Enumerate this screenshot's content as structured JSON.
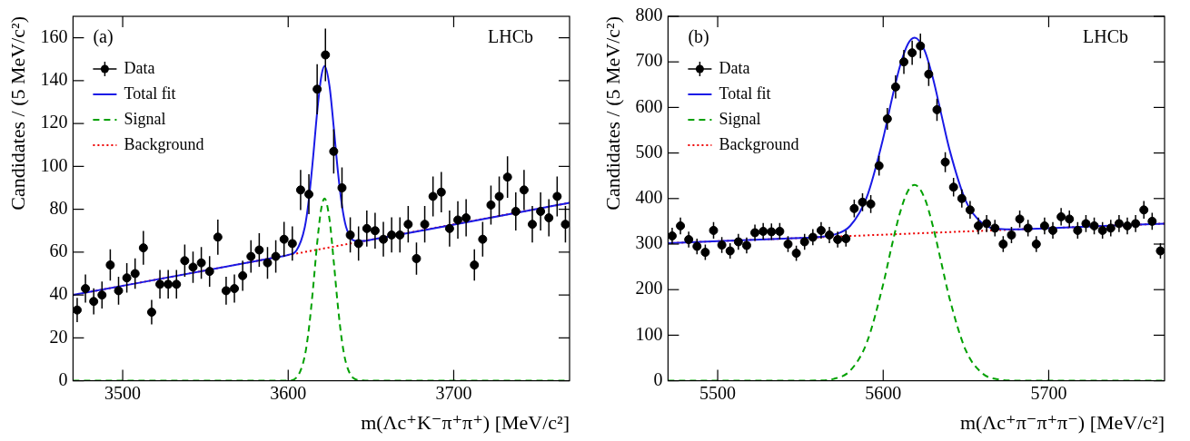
{
  "chart_data": [
    {
      "type": "scatter",
      "x_label": "m(Λc⁺K⁻π⁺π⁺) [MeV/c²]",
      "y_label": "Candidates / (5 MeV/c²)",
      "annotations": [
        {
          "text": "(a)",
          "position": "upper left"
        },
        {
          "text": "LHCb",
          "position": "upper right"
        }
      ],
      "xlim": [
        3470,
        3770
      ],
      "xticks": [
        3500,
        3600,
        3700
      ],
      "ylim": [
        0,
        170
      ],
      "yticks": [
        0,
        20,
        40,
        60,
        80,
        100,
        120,
        140,
        160
      ],
      "grid": false,
      "legend": "upper left",
      "series": [
        {
          "name": "Data",
          "type": "scatter",
          "color": "#000000",
          "marker": "circle",
          "x": [
            3472.5,
            3477.5,
            3482.5,
            3487.5,
            3492.5,
            3497.5,
            3502.5,
            3507.5,
            3512.5,
            3517.5,
            3522.5,
            3527.5,
            3532.5,
            3537.5,
            3542.5,
            3547.5,
            3552.5,
            3557.5,
            3562.5,
            3567.5,
            3572.5,
            3577.5,
            3582.5,
            3587.5,
            3592.5,
            3597.5,
            3602.5,
            3607.5,
            3612.5,
            3617.5,
            3622.5,
            3627.5,
            3632.5,
            3637.5,
            3642.5,
            3647.5,
            3652.5,
            3657.5,
            3662.5,
            3667.5,
            3672.5,
            3677.5,
            3682.5,
            3687.5,
            3692.5,
            3697.5,
            3702.5,
            3707.5,
            3712.5,
            3717.5,
            3722.5,
            3727.5,
            3732.5,
            3737.5,
            3742.5,
            3747.5,
            3752.5,
            3757.5,
            3762.5,
            3767.5
          ],
          "values": [
            33,
            43,
            37,
            40,
            54,
            42,
            48,
            50,
            62,
            32,
            45,
            45,
            45,
            56,
            53,
            55,
            51,
            67,
            42,
            43,
            49,
            58,
            61,
            55,
            58,
            66,
            64,
            89,
            87,
            136,
            152,
            107,
            90,
            68,
            64,
            71,
            70,
            66,
            68,
            68,
            73,
            57,
            73,
            86,
            88,
            71,
            75,
            76,
            54,
            66,
            82,
            86,
            95,
            79,
            89,
            73,
            79,
            76,
            86,
            73
          ],
          "errors": [
            5.7,
            6.6,
            6.1,
            6.3,
            7.3,
            6.5,
            6.9,
            7.1,
            7.9,
            5.7,
            6.7,
            6.7,
            6.7,
            7.5,
            7.3,
            7.4,
            7.1,
            8.2,
            6.5,
            6.6,
            7,
            7.6,
            7.8,
            7.4,
            7.6,
            8.1,
            8,
            9.4,
            9.3,
            11.7,
            12.3,
            10.3,
            9.5,
            8.2,
            8,
            8.4,
            8.4,
            8.1,
            8.2,
            8.2,
            8.5,
            7.5,
            8.5,
            9.3,
            9.4,
            8.4,
            8.7,
            8.7,
            7.3,
            8.1,
            9.1,
            9.3,
            9.7,
            8.9,
            9.4,
            8.5,
            8.9,
            8.7,
            9.3,
            8.5
          ]
        },
        {
          "name": "Total fit",
          "type": "line",
          "color": "#1a1ae6",
          "line_style": "solid",
          "x": [
            3470,
            3590,
            3600,
            3605,
            3610,
            3612.5,
            3615,
            3617.5,
            3620,
            3622,
            3625,
            3627.5,
            3630,
            3632.5,
            3635,
            3640,
            3645,
            3650,
            3770
          ],
          "values": [
            40,
            57.2,
            58.7,
            60.8,
            71.6,
            84.7,
            103.8,
            125.3,
            141.9,
            146.8,
            137.2,
            118.4,
            97.9,
            81.7,
            71.7,
            65.3,
            65.2,
            65.8,
            83
          ]
        },
        {
          "name": "Signal",
          "type": "line",
          "color": "#00a000",
          "line_style": "dashed",
          "x": [
            3470,
            3590,
            3600,
            3605,
            3610,
            3612.5,
            3615,
            3617.5,
            3620,
            3622,
            3625,
            3627.5,
            3630,
            3632.5,
            3635,
            3640,
            3645,
            3650,
            3770
          ],
          "values": [
            0,
            0,
            0.1,
            1.5,
            11.5,
            24.3,
            43,
            64.2,
            80.4,
            85,
            75,
            55.8,
            35,
            18.4,
            8.1,
            0.9,
            0.1,
            0,
            0
          ]
        },
        {
          "name": "Background",
          "type": "line",
          "color": "#ee0000",
          "line_style": "dotted",
          "x": [
            3470,
            3770
          ],
          "values": [
            40,
            83
          ]
        }
      ]
    },
    {
      "type": "scatter",
      "x_label": "m(Λc⁺π⁻π⁺π⁻) [MeV/c²]",
      "y_label": "Candidates / (5 MeV/c²)",
      "annotations": [
        {
          "text": "(b)",
          "position": "upper left"
        },
        {
          "text": "LHCb",
          "position": "upper right"
        }
      ],
      "xlim": [
        5470,
        5770
      ],
      "xticks": [
        5500,
        5600,
        5700
      ],
      "ylim": [
        0,
        800
      ],
      "yticks": [
        0,
        100,
        200,
        300,
        400,
        500,
        600,
        700,
        800
      ],
      "grid": false,
      "legend": "upper left",
      "series": [
        {
          "name": "Data",
          "type": "scatter",
          "color": "#000000",
          "marker": "circle",
          "x": [
            5472.5,
            5477.5,
            5482.5,
            5487.5,
            5492.5,
            5497.5,
            5502.5,
            5507.5,
            5512.5,
            5517.5,
            5522.5,
            5527.5,
            5532.5,
            5537.5,
            5542.5,
            5547.5,
            5552.5,
            5557.5,
            5562.5,
            5567.5,
            5572.5,
            5577.5,
            5582.5,
            5587.5,
            5592.5,
            5597.5,
            5602.5,
            5607.5,
            5612.5,
            5617.5,
            5622.5,
            5627.5,
            5632.5,
            5637.5,
            5642.5,
            5647.5,
            5652.5,
            5657.5,
            5662.5,
            5667.5,
            5672.5,
            5677.5,
            5682.5,
            5687.5,
            5692.5,
            5697.5,
            5702.5,
            5707.5,
            5712.5,
            5717.5,
            5722.5,
            5727.5,
            5732.5,
            5737.5,
            5742.5,
            5747.5,
            5752.5,
            5757.5,
            5762.5,
            5767.5
          ],
          "values": [
            318,
            340,
            310,
            295,
            282,
            330,
            298,
            285,
            305,
            297,
            325,
            328,
            327,
            328,
            300,
            280,
            305,
            315,
            330,
            320,
            310,
            312,
            378,
            392,
            388,
            472,
            575,
            645,
            700,
            720,
            735,
            673,
            595,
            480,
            425,
            400,
            375,
            340,
            345,
            335,
            300,
            320,
            355,
            335,
            300,
            340,
            330,
            360,
            355,
            330,
            345,
            340,
            330,
            335,
            345,
            340,
            345,
            375,
            350,
            285
          ],
          "errors": [
            17.8,
            18.4,
            17.6,
            17.2,
            16.8,
            18.2,
            17.3,
            16.9,
            17.5,
            17.2,
            18,
            18.1,
            18.1,
            18.1,
            17.3,
            16.7,
            17.5,
            17.7,
            18.2,
            17.9,
            17.6,
            17.7,
            19.4,
            19.8,
            19.7,
            21.7,
            24,
            25.4,
            26.5,
            26.8,
            27.1,
            25.9,
            24.4,
            21.9,
            20.6,
            20,
            19.4,
            18.4,
            18.6,
            18.3,
            17.3,
            17.9,
            18.8,
            18.3,
            17.3,
            18.4,
            18.2,
            19,
            18.8,
            18.2,
            18.6,
            18.4,
            18.2,
            18.3,
            18.6,
            18.4,
            18.6,
            19.4,
            18.7,
            16.9
          ]
        },
        {
          "name": "Total fit",
          "type": "line",
          "color": "#1a1ae6",
          "line_style": "solid",
          "x": [
            5470,
            5540,
            5560,
            5570,
            5580,
            5590,
            5600,
            5605,
            5610,
            5615,
            5619,
            5625,
            5630,
            5635,
            5640,
            5650,
            5660,
            5670,
            5680,
            5700,
            5770
          ],
          "values": [
            302,
            312,
            315.4,
            320.3,
            339.8,
            402.2,
            532.6,
            614.3,
            689.1,
            739.8,
            753.4,
            725.2,
            664.9,
            586.6,
            508.4,
            393.8,
            345.2,
            333.4,
            332.4,
            335,
            345
          ]
        },
        {
          "name": "Signal",
          "type": "line",
          "color": "#00a000",
          "line_style": "dashed",
          "x": [
            5470,
            5540,
            5560,
            5570,
            5580,
            5590,
            5600,
            5605,
            5610,
            5615,
            5619,
            5625,
            5630,
            5635,
            5640,
            5650,
            5660,
            5670,
            5680,
            5700,
            5770
          ],
          "values": [
            0,
            0,
            0.5,
            4,
            22,
            83,
            212,
            293,
            367,
            417,
            430,
            401,
            340,
            261,
            182,
            66,
            16,
            2.7,
            0.3,
            0,
            0
          ]
        },
        {
          "name": "Background",
          "type": "line",
          "color": "#ee0000",
          "line_style": "dotted",
          "x": [
            5470,
            5770
          ],
          "values": [
            302,
            345
          ]
        }
      ]
    }
  ]
}
